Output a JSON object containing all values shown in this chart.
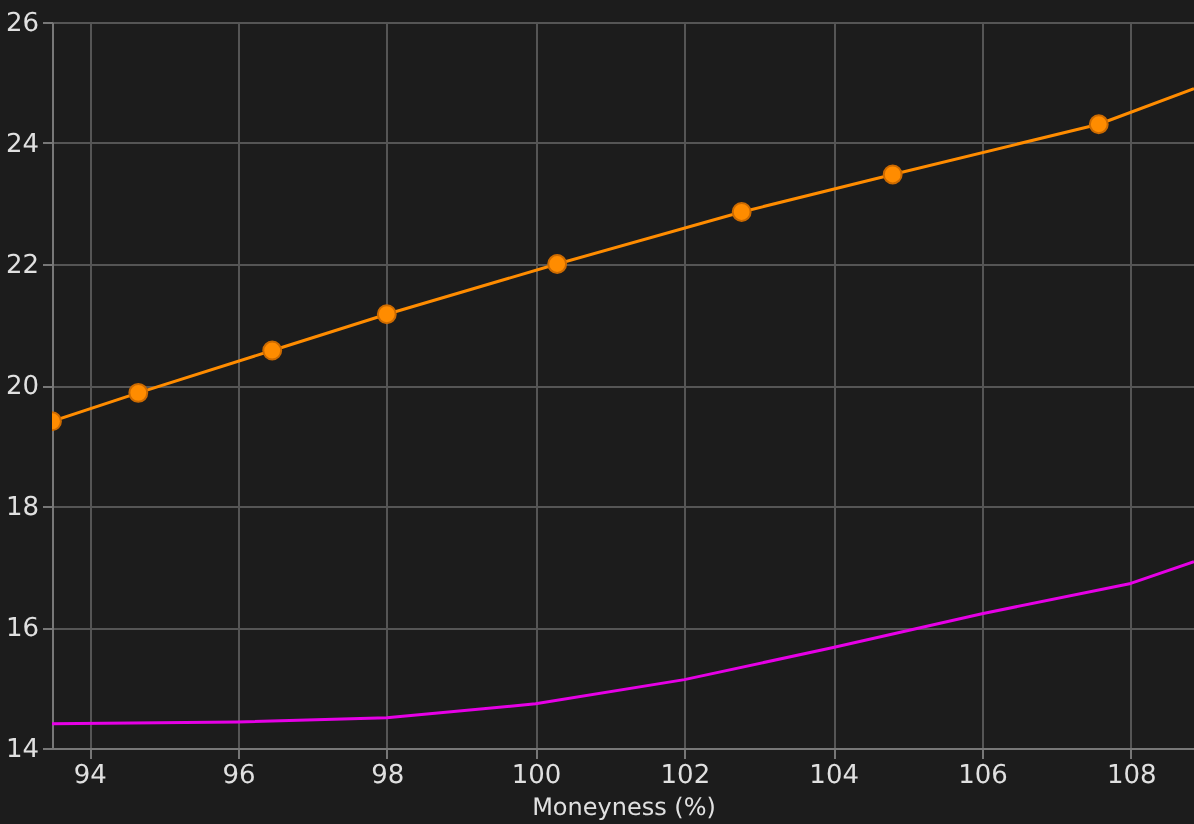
{
  "chart_data": {
    "type": "line",
    "xlabel": "Moneyness (%)",
    "xlim": [
      93.5,
      108.85
    ],
    "xticks": [
      94,
      96,
      98,
      100,
      102,
      104,
      106,
      108
    ],
    "ylim": [
      14,
      26
    ],
    "yticks": [
      14,
      16,
      18,
      20,
      22,
      24,
      26
    ],
    "grid": true,
    "series": [
      {
        "color": "#ff8c00",
        "marker": "none",
        "x": [
          93.5,
          94.66,
          96.46,
          98.0,
          100.29,
          102.77,
          104.8,
          107.57,
          108.85
        ],
        "values": [
          19.4,
          19.87,
          20.57,
          21.17,
          22.0,
          22.86,
          23.48,
          24.31,
          24.9
        ]
      },
      {
        "type": "scatter",
        "color": "#ff8c00",
        "marker": "circle",
        "x": [
          93.5,
          94.66,
          96.46,
          98.0,
          100.29,
          102.77,
          104.8,
          107.57
        ],
        "values": [
          19.4,
          19.87,
          20.57,
          21.17,
          22.0,
          22.86,
          23.48,
          24.31
        ]
      },
      {
        "color": "#e600e6",
        "marker": "none",
        "x": [
          93.5,
          96,
          98,
          100,
          102,
          104,
          106,
          108,
          108.85
        ],
        "values": [
          14.4,
          14.43,
          14.5,
          14.73,
          15.13,
          15.66,
          16.22,
          16.72,
          17.08
        ]
      }
    ]
  }
}
